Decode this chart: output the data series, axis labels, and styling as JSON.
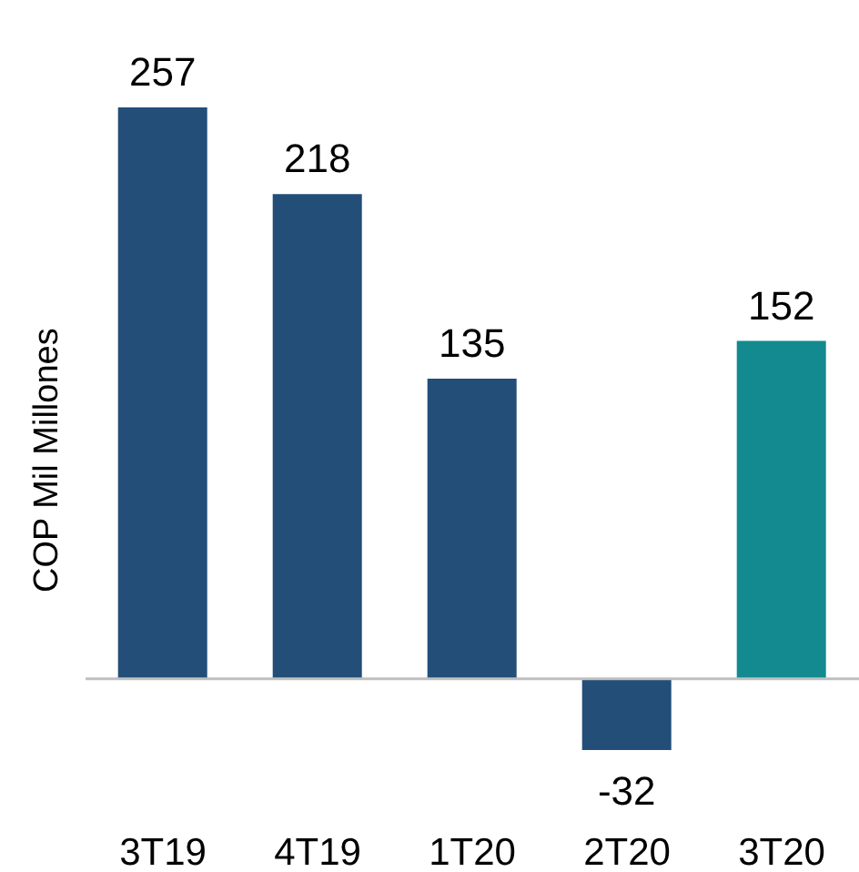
{
  "chart_data": {
    "type": "bar",
    "ylabel": "COP Mil Millones",
    "categories": [
      "3T19",
      "4T19",
      "1T20",
      "2T20",
      "3T20"
    ],
    "values": [
      257,
      218,
      135,
      -32,
      152
    ],
    "colors": [
      "#224e78",
      "#224e78",
      "#224e78",
      "#224e78",
      "#138a90"
    ],
    "data_labels": true,
    "grid": false,
    "legend": false
  }
}
